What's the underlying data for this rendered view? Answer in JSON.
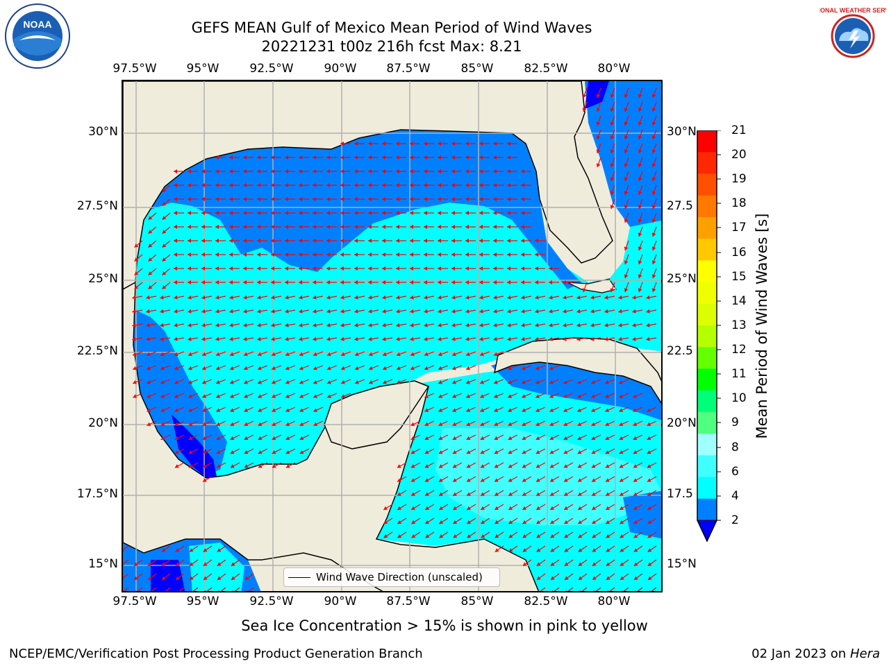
{
  "header": {
    "title_line1": "GEFS MEAN Gulf of Mexico Mean Period of Wind Waves",
    "title_line2": "20221231 t00z 216h fcst   Max: 8.21"
  },
  "logos": {
    "noaa_text": "NOAA",
    "nws_text": "NATIONAL WEATHER SERVICE"
  },
  "map": {
    "lon_labels": [
      "97.5°W",
      "95°W",
      "92.5°W",
      "90°W",
      "87.5°W",
      "85°W",
      "82.5°W",
      "80°W"
    ],
    "lat_labels_left": [
      "30°N",
      "27.5°N",
      "25°N",
      "22.5°N",
      "20°N",
      "17.5°N",
      "15°N"
    ],
    "lat_labels_right": [
      "30°N",
      "27.5",
      "25°N",
      "22.5",
      "20°N",
      "17.5",
      "15°N"
    ],
    "legend_label": "Wind Wave Direction (unscaled)",
    "colors": {
      "land": "#efecdc",
      "ocean_2_4": "#0080ff",
      "ocean_4_6": "#00ffff",
      "ocean_6_8": "#40ffff",
      "ocean_lt_2": "#0000ff",
      "arrows": "#ff0000"
    }
  },
  "colorbar": {
    "label": "Mean Period of Wind Waves [s]",
    "ticks": [
      "21",
      "20",
      "19",
      "18",
      "17",
      "16",
      "15",
      "14",
      "13",
      "12",
      "11",
      "10",
      "9",
      "8",
      "6",
      "4",
      "2"
    ],
    "colors": [
      "#ff0000",
      "#ff2800",
      "#ff5000",
      "#ff7800",
      "#ffa000",
      "#ffc800",
      "#ffff00",
      "#f0ff00",
      "#dcff00",
      "#b4ff00",
      "#64ff00",
      "#00ff00",
      "#00ff78",
      "#50ff80",
      "#a0ffff",
      "#40ffff",
      "#00ffff",
      "#0080ff"
    ],
    "underflow_color": "#0000ff"
  },
  "footer": {
    "subtitle": "Sea Ice Concentration > 15% is shown in pink to yellow",
    "credit": "NCEP/EMC/Verification Post Processing Product Generation Branch",
    "date": "02 Jan 2023 on",
    "host": "Hera"
  }
}
